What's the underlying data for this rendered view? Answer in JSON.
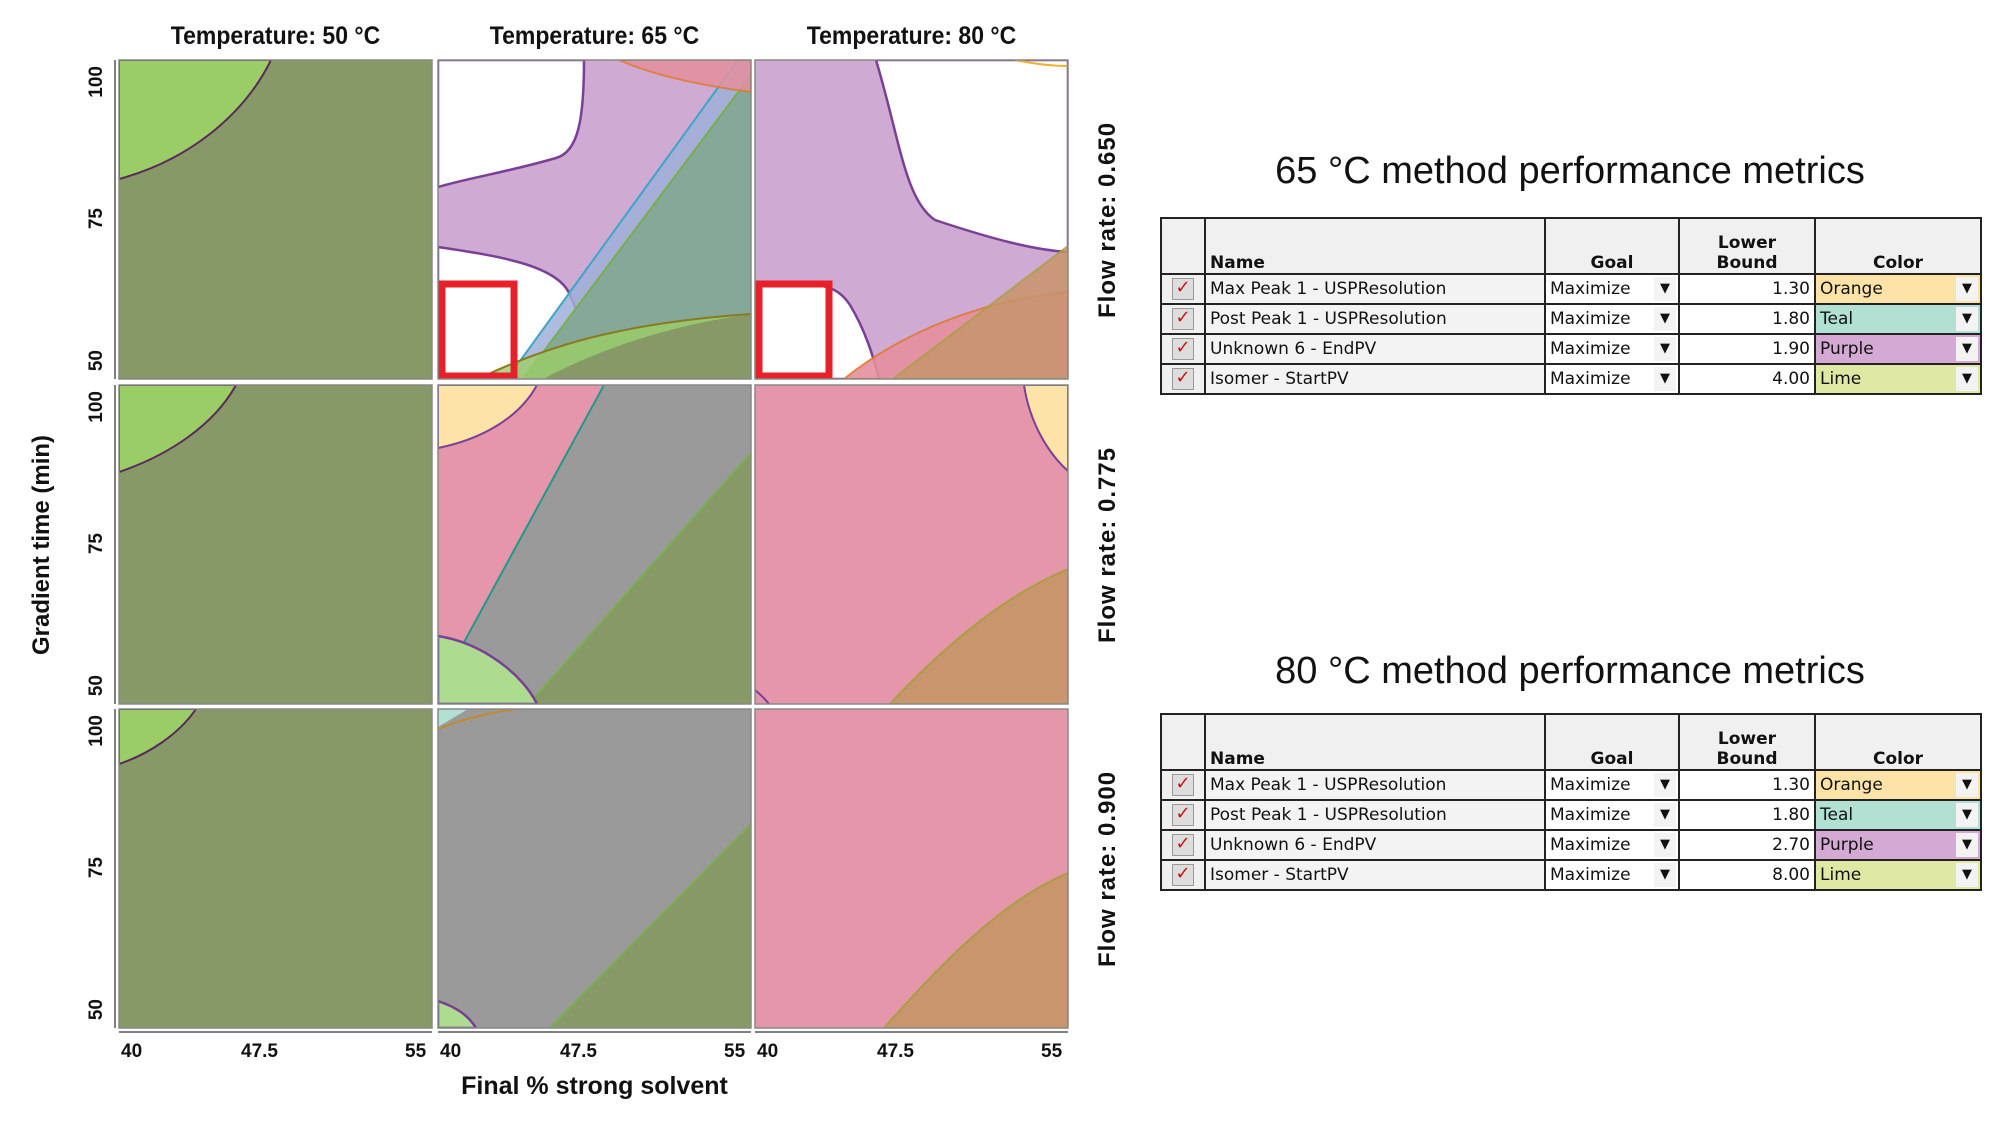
{
  "chart_data": {
    "type": "region-overlay contour grid",
    "column_titles": [
      "Temperature: 50 °C",
      "Temperature: 65 °C",
      "Temperature: 80 °C"
    ],
    "row_titles": [
      "Flow rate: 0.650",
      "Flow rate: 0.775",
      "Flow rate: 0.900"
    ],
    "xlabel": "Final % strong solvent",
    "ylabel": "Gradient time (min)",
    "xticks": [
      "40",
      "47.5",
      "55"
    ],
    "yticks": [
      "50",
      "75",
      "100"
    ],
    "xlim": [
      40,
      55
    ],
    "ylim": [
      50,
      100
    ],
    "highlight": "red rectangle at low % strong solvent, low gradient time in 65 °C and 80 °C panels at flow rate 0.650"
  },
  "tables": [
    {
      "title": "65 °C method performance metrics",
      "headers": {
        "name": "Name",
        "goal": "Goal",
        "lower": "Lower",
        "bound": "Bound",
        "color": "Color"
      },
      "rows": [
        {
          "name": "Max Peak 1 - USPResolution",
          "goal": "Maximize",
          "lower_bound": "1.30",
          "color": "Orange",
          "swatch": "#fde3a8"
        },
        {
          "name": "Post Peak 1 - USPResolution",
          "goal": "Maximize",
          "lower_bound": "1.80",
          "color": "Teal",
          "swatch": "#b2e0d2"
        },
        {
          "name": "Unknown 6 - EndPV",
          "goal": "Maximize",
          "lower_bound": "1.90",
          "color": "Purple",
          "swatch": "#d4aad4"
        },
        {
          "name": "Isomer - StartPV",
          "goal": "Maximize",
          "lower_bound": "4.00",
          "color": "Lime",
          "swatch": "#e0e9a4"
        }
      ]
    },
    {
      "title": "80 °C method performance metrics",
      "headers": {
        "name": "Name",
        "goal": "Goal",
        "lower": "Lower",
        "bound": "Bound",
        "color": "Color"
      },
      "rows": [
        {
          "name": "Max Peak 1 - USPResolution",
          "goal": "Maximize",
          "lower_bound": "1.30",
          "color": "Orange",
          "swatch": "#fde3a8"
        },
        {
          "name": "Post Peak 1 - USPResolution",
          "goal": "Maximize",
          "lower_bound": "1.80",
          "color": "Teal",
          "swatch": "#b2e0d2"
        },
        {
          "name": "Unknown 6 - EndPV",
          "goal": "Maximize",
          "lower_bound": "2.70",
          "color": "Purple",
          "swatch": "#d4aad4"
        },
        {
          "name": "Isomer - StartPV",
          "goal": "Maximize",
          "lower_bound": "8.00",
          "color": "Lime",
          "swatch": "#e0e9a4"
        }
      ]
    }
  ]
}
